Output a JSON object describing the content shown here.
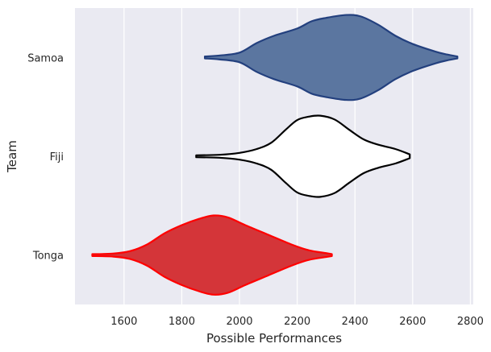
{
  "chart_data": {
    "type": "violin",
    "orientation": "horizontal",
    "title": "",
    "xlabel": "Possible Performances",
    "ylabel": "Team",
    "xlim": [
      1430,
      2810
    ],
    "xticks": [
      1600,
      1800,
      2000,
      2200,
      2400,
      2600,
      2800
    ],
    "grid": true,
    "categories": [
      "Samoa",
      "Fiji",
      "Tonga"
    ],
    "series": [
      {
        "name": "Samoa",
        "fill": "#5b76a0",
        "stroke": "#23407e",
        "profile": [
          [
            1880,
            0.02
          ],
          [
            1930,
            0.04
          ],
          [
            2000,
            0.1
          ],
          [
            2060,
            0.3
          ],
          [
            2120,
            0.45
          ],
          [
            2200,
            0.6
          ],
          [
            2250,
            0.75
          ],
          [
            2300,
            0.82
          ],
          [
            2370,
            0.88
          ],
          [
            2420,
            0.85
          ],
          [
            2480,
            0.68
          ],
          [
            2540,
            0.45
          ],
          [
            2600,
            0.28
          ],
          [
            2680,
            0.12
          ],
          [
            2720,
            0.06
          ],
          [
            2755,
            0.02
          ]
        ]
      },
      {
        "name": "Fiji",
        "fill": "#ffffff",
        "stroke": "#000000",
        "profile": [
          [
            1850,
            0.02
          ],
          [
            1930,
            0.03
          ],
          [
            2000,
            0.07
          ],
          [
            2060,
            0.15
          ],
          [
            2110,
            0.28
          ],
          [
            2160,
            0.55
          ],
          [
            2200,
            0.75
          ],
          [
            2240,
            0.82
          ],
          [
            2280,
            0.84
          ],
          [
            2330,
            0.76
          ],
          [
            2380,
            0.55
          ],
          [
            2430,
            0.35
          ],
          [
            2480,
            0.24
          ],
          [
            2540,
            0.15
          ],
          [
            2590,
            0.04
          ]
        ]
      },
      {
        "name": "Tonga",
        "fill": "#d43539",
        "stroke": "#ff0000",
        "profile": [
          [
            1490,
            0.02
          ],
          [
            1560,
            0.03
          ],
          [
            1620,
            0.08
          ],
          [
            1680,
            0.22
          ],
          [
            1740,
            0.45
          ],
          [
            1800,
            0.62
          ],
          [
            1860,
            0.75
          ],
          [
            1910,
            0.82
          ],
          [
            1960,
            0.78
          ],
          [
            2020,
            0.62
          ],
          [
            2100,
            0.42
          ],
          [
            2180,
            0.22
          ],
          [
            2240,
            0.1
          ],
          [
            2300,
            0.04
          ],
          [
            2320,
            0.02
          ]
        ]
      }
    ]
  },
  "colors": {
    "plot_background": "#eaeaf2",
    "grid": "#ffffff",
    "text": "#262626"
  }
}
